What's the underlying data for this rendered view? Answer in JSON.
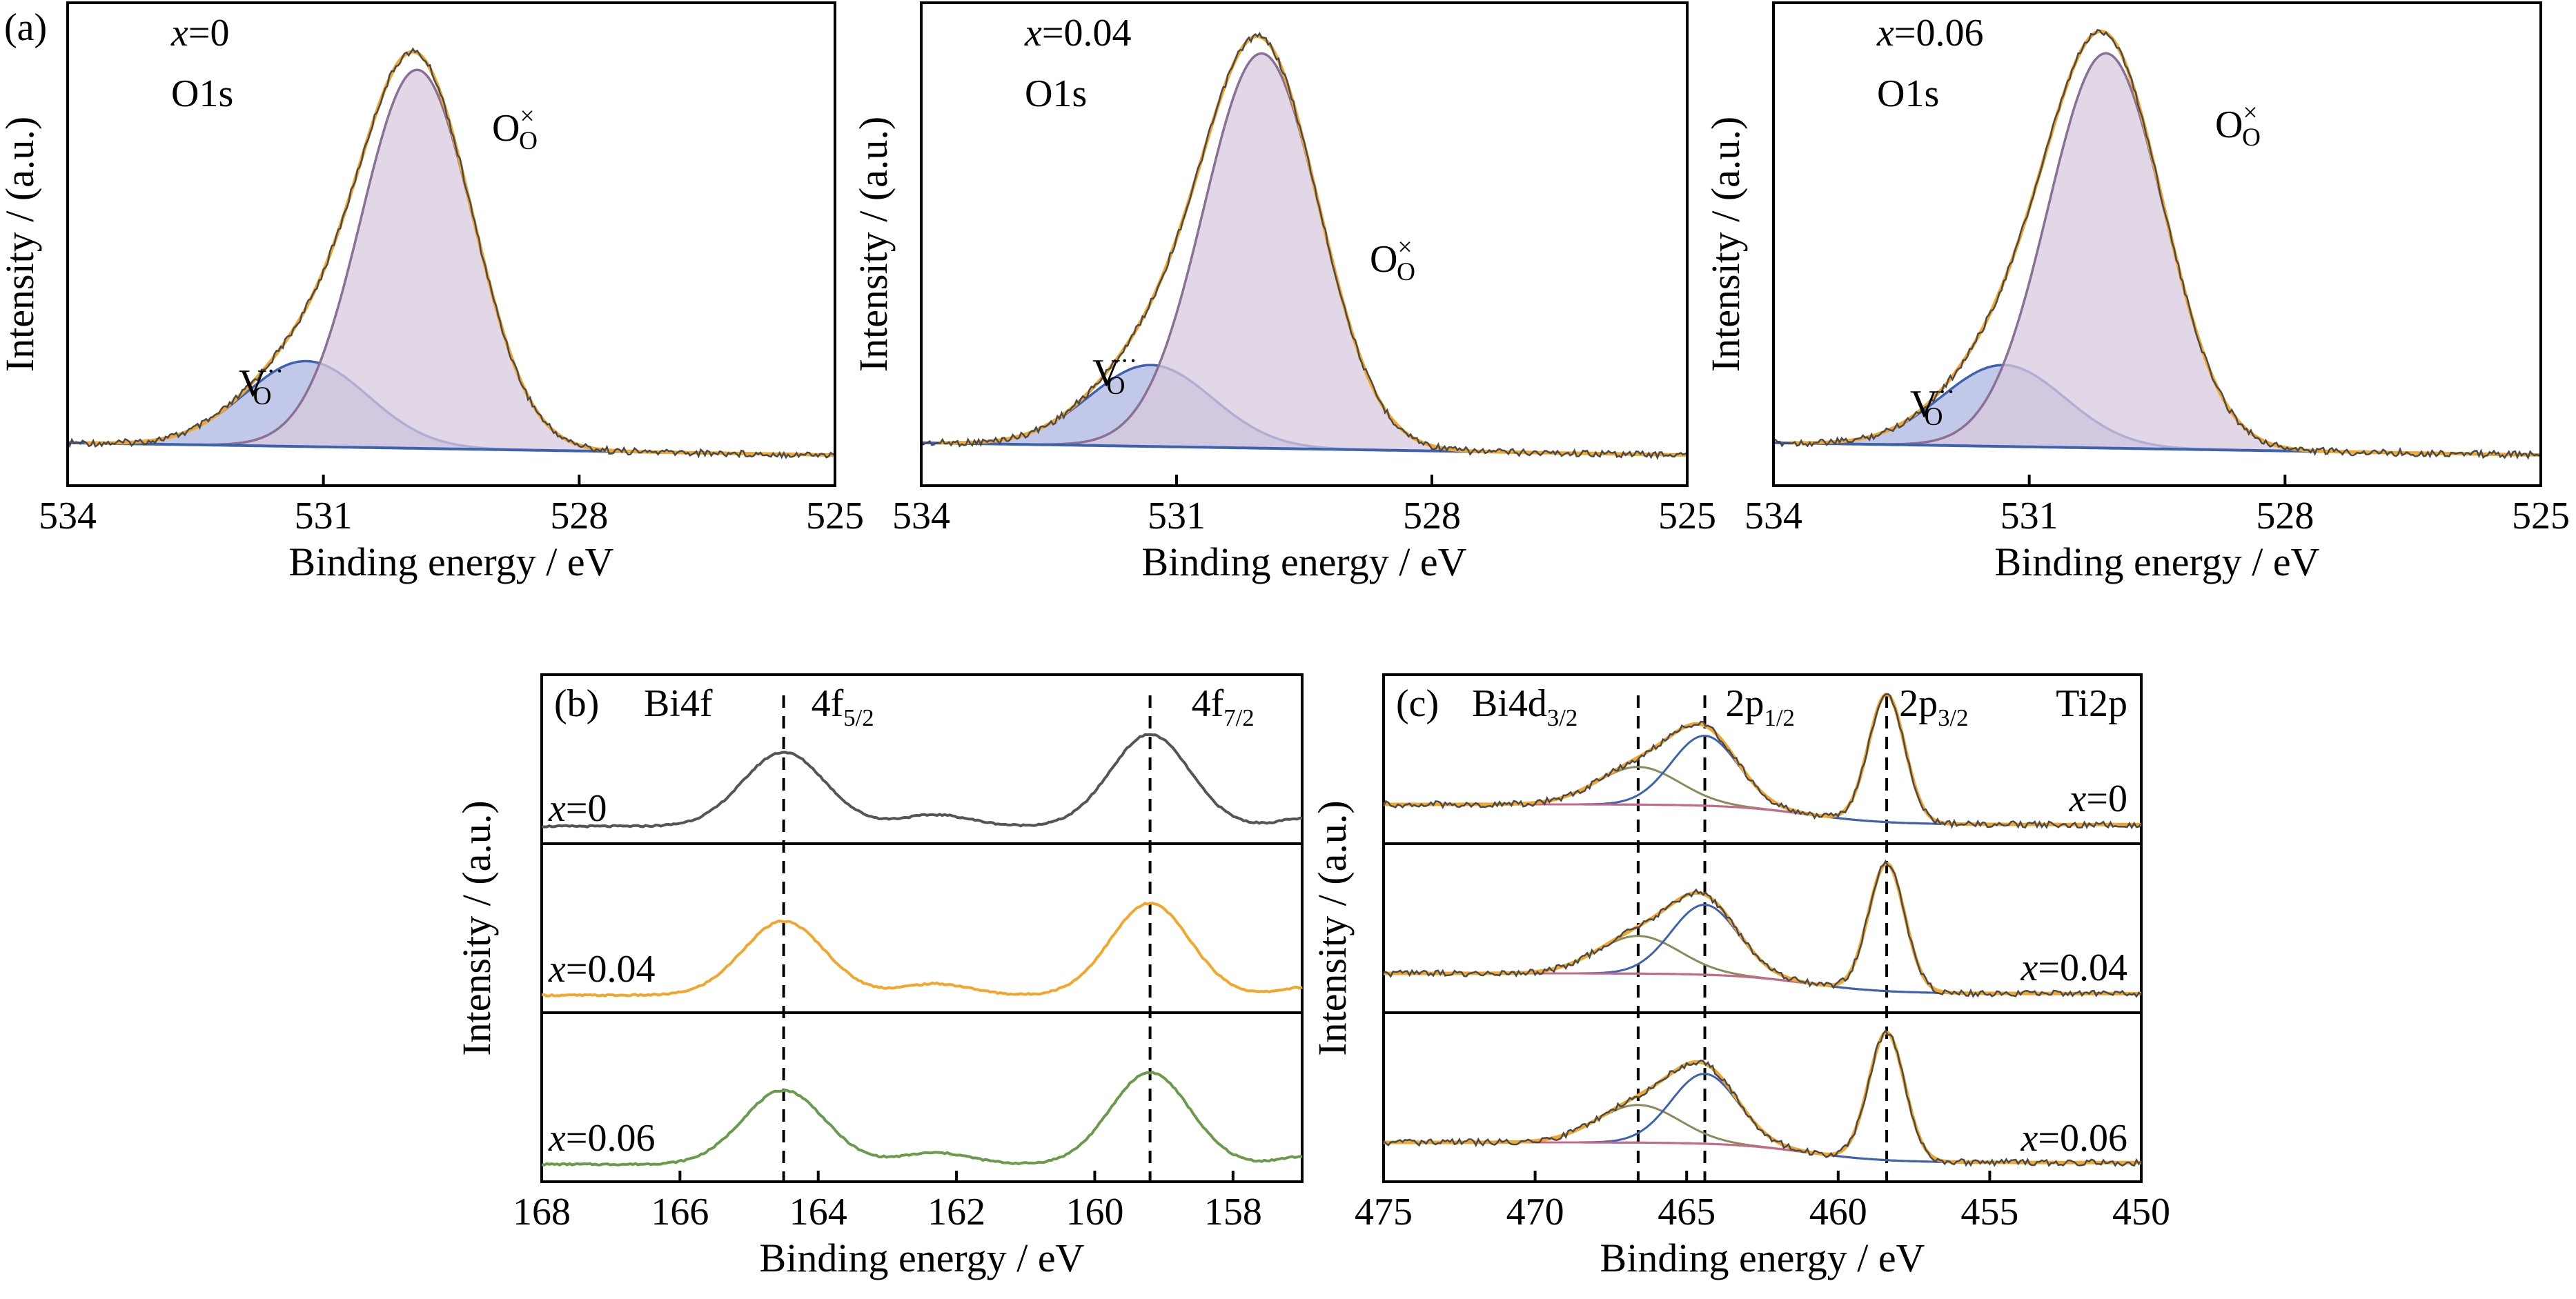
{
  "figure": {
    "panel_a_letter": "(a)",
    "panel_b_letter": "(b)",
    "panel_c_letter": "(c)"
  },
  "chart_data": [
    {
      "id": "a1",
      "type": "area",
      "xlabel": "Binding energy / eV",
      "ylabel": "Intensity / (a.u.)",
      "xlim": [
        534,
        525
      ],
      "x_reversed": true,
      "xticks": [
        534,
        531,
        528,
        525
      ],
      "composition_label": "x=0",
      "core_level": "O1s",
      "peaks": [
        {
          "name": "O_O^×",
          "label_main": "O",
          "label_sub": "O",
          "label_sup": "×",
          "center_eV": 529.9,
          "rel_height": 0.93,
          "fwhm_eV": 1.55,
          "color": "#8b7096",
          "fill": "#d7c9dd"
        },
        {
          "name": "V_O^··",
          "label_main": "V",
          "label_sub": "O",
          "label_sup": "··",
          "center_eV": 531.2,
          "rel_height": 0.21,
          "fwhm_eV": 1.7,
          "color": "#3e62b3",
          "fill": "#aeb5e0"
        }
      ]
    },
    {
      "id": "a2",
      "type": "area",
      "xlabel": "Binding energy / eV",
      "ylabel": "Intensity / (a.u.)",
      "xlim": [
        534,
        525
      ],
      "x_reversed": true,
      "xticks": [
        534,
        531,
        528,
        525
      ],
      "composition_label": "x=0.04",
      "core_level": "O1s",
      "peaks": [
        {
          "name": "O_O^×",
          "label_main": "O",
          "label_sub": "O",
          "label_sup": "×",
          "center_eV": 530.0,
          "rel_height": 0.97,
          "fwhm_eV": 1.6,
          "color": "#8b7096",
          "fill": "#d7c9dd"
        },
        {
          "name": "V_O^··",
          "label_main": "V",
          "label_sub": "O",
          "label_sup": "··",
          "center_eV": 531.3,
          "rel_height": 0.2,
          "fwhm_eV": 1.7,
          "color": "#3e62b3",
          "fill": "#aeb5e0"
        }
      ]
    },
    {
      "id": "a3",
      "type": "area",
      "xlabel": "Binding energy / eV",
      "ylabel": "Intensity / (a.u.)",
      "xlim": [
        534,
        525
      ],
      "x_reversed": true,
      "xticks": [
        534,
        531,
        528,
        525
      ],
      "composition_label": "x=0.06",
      "core_level": "O1s",
      "peaks": [
        {
          "name": "O_O^×",
          "label_main": "O",
          "label_sub": "O",
          "label_sup": "×",
          "center_eV": 530.1,
          "rel_height": 0.97,
          "fwhm_eV": 1.6,
          "color": "#8b7096",
          "fill": "#d7c9dd"
        },
        {
          "name": "V_O^··",
          "label_main": "V",
          "label_sub": "O",
          "label_sup": "··",
          "center_eV": 531.3,
          "rel_height": 0.2,
          "fwhm_eV": 1.7,
          "color": "#3e62b3",
          "fill": "#aeb5e0"
        }
      ]
    },
    {
      "id": "b",
      "type": "line",
      "xlabel": "Binding energy / eV",
      "ylabel": "Intensity / (a.u.)",
      "xlim": [
        168,
        157
      ],
      "x_reversed": true,
      "xticks": [
        168,
        166,
        164,
        162,
        160,
        158
      ],
      "element_label": "Bi4f",
      "peak_labels": [
        {
          "main": "4f",
          "sub": "5/2",
          "position_eV": 164.5
        },
        {
          "main": "4f",
          "sub": "7/2",
          "position_eV": 159.2
        }
      ],
      "series": [
        {
          "name": "x=0",
          "color": "#555555"
        },
        {
          "name": "x=0.04",
          "color": "#f4a62a"
        },
        {
          "name": "x=0.06",
          "color": "#6b9a4a"
        }
      ]
    },
    {
      "id": "c",
      "type": "line",
      "xlabel": "Binding energy / eV",
      "ylabel": "Intensity / (a.u.)",
      "xlim": [
        475,
        450
      ],
      "x_reversed": true,
      "xticks": [
        475,
        470,
        465,
        460,
        455,
        450
      ],
      "element_label": "Ti2p",
      "peak_labels": [
        {
          "main": "Bi4d",
          "sub": "3/2",
          "position_eV": 466.6
        },
        {
          "main": "2p",
          "sub": "1/2",
          "position_eV": 464.4
        },
        {
          "main": "2p",
          "sub": "3/2",
          "position_eV": 458.4
        }
      ],
      "series": [
        {
          "name": "x=0"
        },
        {
          "name": "x=0.04"
        },
        {
          "name": "x=0.06"
        }
      ]
    }
  ]
}
